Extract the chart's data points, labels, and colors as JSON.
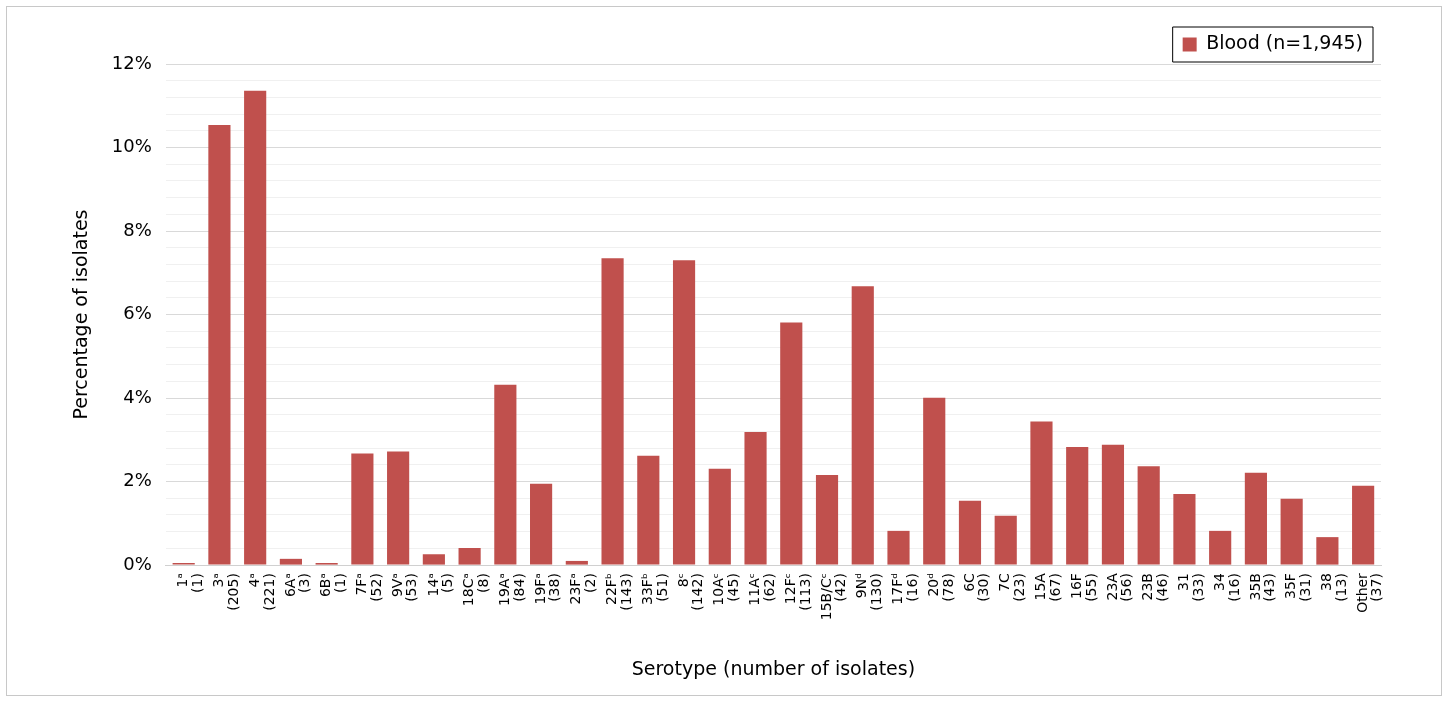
{
  "chart_data": {
    "type": "bar",
    "xlabel": "Serotype (number of isolates)",
    "ylabel": "Percentage of isolates",
    "categories": [
      "1ᵃ\n(1)",
      "3ᵃ\n(205)",
      "4ᵃ\n(221)",
      "6Aᵃ\n(3)",
      "6Bᵃ\n(1)",
      "7Fᵃ\n(52)",
      "9Vᵃ\n(53)",
      "14ᵃ\n(5)",
      "18Cᵃ\n(8)",
      "19Aᵃ\n(84)",
      "19Fᵃ\n(38)",
      "23Fᵃ\n(2)",
      "22Fᵇ\n(143)",
      "33Fᵇ\n(51)",
      "8ᶜ\n(142)",
      "10Aᶜ\n(45)",
      "11Aᶜ\n(62)",
      "12Fᶜ\n(113)",
      "15B/Cᶜ\n(42)",
      "9Nᵈ\n(130)",
      "17Fᵈ\n(16)",
      "20ᵈ\n(78)",
      "6C\n(30)",
      "7C\n(23)",
      "15A\n(67)",
      "16F\n(55)",
      "23A\n(56)",
      "23B\n(46)",
      "31\n(33)",
      "34\n(16)",
      "35B\n(43)",
      "35F\n(31)",
      "38\n(13)",
      "Other\n(37)"
    ],
    "series": [
      {
        "name": "Blood (n=1,945)",
        "color": "#c0504d",
        "values": [
          0.05,
          10.54,
          11.36,
          0.15,
          0.05,
          2.67,
          2.72,
          0.26,
          0.41,
          4.32,
          1.95,
          0.1,
          7.35,
          2.62,
          7.3,
          2.31,
          3.19,
          5.81,
          2.16,
          6.68,
          0.82,
          4.01,
          1.54,
          1.18,
          3.44,
          2.83,
          2.88,
          2.37,
          1.7,
          0.82,
          2.21,
          1.59,
          0.67,
          1.9
        ]
      }
    ],
    "ylim": [
      0,
      12
    ],
    "yticks": [
      {
        "value": 0,
        "label": "0%"
      },
      {
        "value": 0.4,
        "label": null
      },
      {
        "value": 0.8,
        "label": null
      },
      {
        "value": 1.2,
        "label": null
      },
      {
        "value": 1.6,
        "label": null
      },
      {
        "value": 2,
        "label": "2%"
      },
      {
        "value": 2.4,
        "label": null
      },
      {
        "value": 2.8,
        "label": null
      },
      {
        "value": 3.2,
        "label": null
      },
      {
        "value": 3.6,
        "label": null
      },
      {
        "value": 4,
        "label": "4%"
      },
      {
        "value": 4.4,
        "label": null
      },
      {
        "value": 4.8,
        "label": null
      },
      {
        "value": 5.2,
        "label": null
      },
      {
        "value": 5.6,
        "label": null
      },
      {
        "value": 6,
        "label": "6%"
      },
      {
        "value": 6.4,
        "label": null
      },
      {
        "value": 6.8,
        "label": null
      },
      {
        "value": 7.2,
        "label": null
      },
      {
        "value": 7.6,
        "label": null
      },
      {
        "value": 8,
        "label": "8%"
      },
      {
        "value": 8.4,
        "label": null
      },
      {
        "value": 8.8,
        "label": null
      },
      {
        "value": 9.2,
        "label": null
      },
      {
        "value": 9.6,
        "label": null
      },
      {
        "value": 10,
        "label": "10%"
      },
      {
        "value": 10.4,
        "label": null
      },
      {
        "value": 10.8,
        "label": null
      },
      {
        "value": 11.2,
        "label": null
      },
      {
        "value": 11.6,
        "label": null
      },
      {
        "value": 12,
        "label": "12%"
      }
    ],
    "grid": "y",
    "legend": "top right"
  }
}
